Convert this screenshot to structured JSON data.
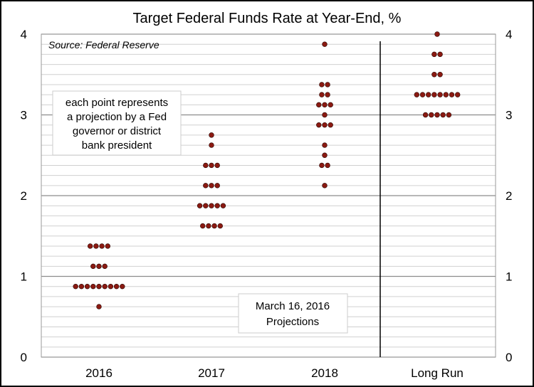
{
  "chart_data": {
    "type": "scatter",
    "title": "Target Federal Funds Rate at Year-End, %",
    "source": "Source: Federal Reserve",
    "categories": [
      "2016",
      "2017",
      "2018",
      "Long Run"
    ],
    "ylim": [
      0,
      4
    ],
    "yticks": [
      "0",
      "1",
      "2",
      "3",
      "4"
    ],
    "minor_grid_step": 0.125,
    "grid": true,
    "dot_color": "#8B1A12",
    "annotation_note": [
      "each point represents",
      "a projection by a Fed",
      "governor or district",
      "bank president"
    ],
    "annotation_date": [
      "March 16, 2016",
      "Projections"
    ],
    "points": [
      {
        "x": "2016",
        "y": 1.375,
        "count": 4
      },
      {
        "x": "2016",
        "y": 1.125,
        "count": 3
      },
      {
        "x": "2016",
        "y": 0.875,
        "count": 9
      },
      {
        "x": "2016",
        "y": 0.625,
        "count": 1
      },
      {
        "x": "2017",
        "y": 2.75,
        "count": 1
      },
      {
        "x": "2017",
        "y": 2.625,
        "count": 1
      },
      {
        "x": "2017",
        "y": 2.375,
        "count": 3
      },
      {
        "x": "2017",
        "y": 2.125,
        "count": 3
      },
      {
        "x": "2017",
        "y": 1.875,
        "count": 5
      },
      {
        "x": "2017",
        "y": 1.625,
        "count": 4
      },
      {
        "x": "2018",
        "y": 3.875,
        "count": 1
      },
      {
        "x": "2018",
        "y": 3.375,
        "count": 2
      },
      {
        "x": "2018",
        "y": 3.25,
        "count": 2
      },
      {
        "x": "2018",
        "y": 3.125,
        "count": 3
      },
      {
        "x": "2018",
        "y": 3.0,
        "count": 1
      },
      {
        "x": "2018",
        "y": 2.875,
        "count": 3
      },
      {
        "x": "2018",
        "y": 2.625,
        "count": 1
      },
      {
        "x": "2018",
        "y": 2.5,
        "count": 1
      },
      {
        "x": "2018",
        "y": 2.375,
        "count": 2
      },
      {
        "x": "2018",
        "y": 2.125,
        "count": 1
      },
      {
        "x": "Long Run",
        "y": 4.0,
        "count": 1
      },
      {
        "x": "Long Run",
        "y": 3.75,
        "count": 2
      },
      {
        "x": "Long Run",
        "y": 3.5,
        "count": 2
      },
      {
        "x": "Long Run",
        "y": 3.25,
        "count": 8
      },
      {
        "x": "Long Run",
        "y": 3.0,
        "count": 5
      }
    ]
  }
}
